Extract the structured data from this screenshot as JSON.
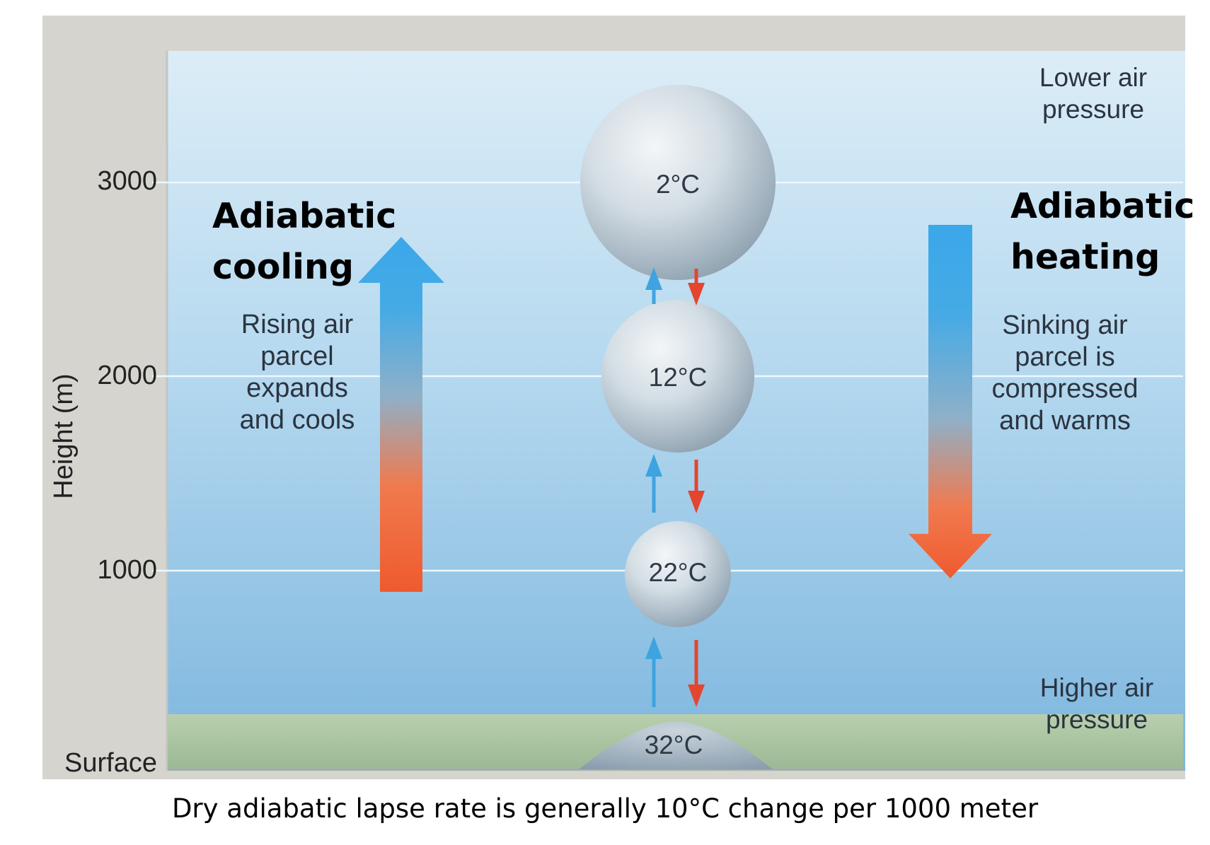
{
  "axis": {
    "ylabel": "Height (m)",
    "ticks": [
      "3000",
      "2000",
      "1000",
      "Surface"
    ]
  },
  "left": {
    "title_line1": "Adiabatic",
    "title_line2": "cooling",
    "desc_lines": [
      "Rising air",
      "parcel",
      "expands",
      "and cools"
    ]
  },
  "right": {
    "title_line1": "Adiabatic",
    "title_line2": "heating",
    "desc_lines": [
      "Sinking air",
      "parcel is",
      "compressed",
      "and warms"
    ]
  },
  "top_note": [
    "Lower air",
    "pressure"
  ],
  "bottom_note": [
    "Higher air",
    "pressure"
  ],
  "parcels": [
    {
      "temp": "2°C",
      "height_m": 3000
    },
    {
      "temp": "12°C",
      "height_m": 2000
    },
    {
      "temp": "22°C",
      "height_m": 1000
    },
    {
      "temp": "32°C",
      "height_m": 0
    }
  ],
  "caption": "Dry adiabatic lapse rate is generally 10°C change per 1000 meter",
  "colors": {
    "sky_top": "#d8ecf7",
    "sky_bottom": "#7fb7de",
    "ground": "#a9c3a0",
    "frame": "#d6d4cf",
    "cool_arrow": "#3fa9e8",
    "warm_arrow": "#ef5a2f"
  }
}
